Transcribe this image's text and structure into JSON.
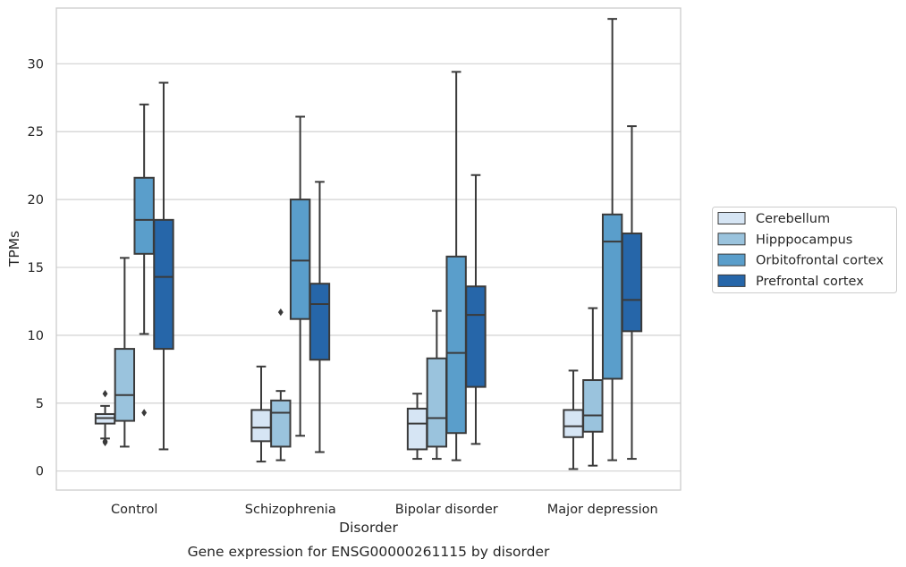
{
  "chart_data": {
    "type": "box",
    "title": "Gene expression for ENSG00000261115 by disorder",
    "xlabel": "Disorder",
    "ylabel": "TPMs",
    "ylim": [
      -1.4,
      34.1
    ],
    "yticks": [
      0,
      5,
      10,
      15,
      20,
      25,
      30
    ],
    "grid": "y",
    "legend_position": "right",
    "categories": [
      "Control",
      "Schizophrenia",
      "Bipolar disorder",
      "Major depression"
    ],
    "series": [
      {
        "name": "Cerebellum",
        "color": "#d6e5f4",
        "boxes": [
          {
            "whislo": 2.4,
            "q1": 3.5,
            "med": 3.9,
            "q3": 4.2,
            "whishi": 4.8,
            "fliers": [
              2.1,
              2.2,
              5.7
            ]
          },
          {
            "whislo": 0.7,
            "q1": 2.2,
            "med": 3.2,
            "q3": 4.5,
            "whishi": 7.7,
            "fliers": []
          },
          {
            "whislo": 0.9,
            "q1": 1.6,
            "med": 3.5,
            "q3": 4.6,
            "whishi": 5.7,
            "fliers": []
          },
          {
            "whislo": 0.15,
            "q1": 2.5,
            "med": 3.3,
            "q3": 4.5,
            "whishi": 7.4,
            "fliers": []
          }
        ]
      },
      {
        "name": "Hipppocampus",
        "color": "#9ac3dd",
        "boxes": [
          {
            "whislo": 1.8,
            "q1": 3.7,
            "med": 5.6,
            "q3": 9.0,
            "whishi": 15.7,
            "fliers": []
          },
          {
            "whislo": 0.8,
            "q1": 1.8,
            "med": 4.3,
            "q3": 5.2,
            "whishi": 5.9,
            "fliers": [
              11.7
            ]
          },
          {
            "whislo": 0.9,
            "q1": 1.8,
            "med": 3.9,
            "q3": 8.3,
            "whishi": 11.8,
            "fliers": []
          },
          {
            "whislo": 0.4,
            "q1": 2.9,
            "med": 4.1,
            "q3": 6.7,
            "whishi": 12.0,
            "fliers": []
          }
        ]
      },
      {
        "name": "Orbitofrontal cortex",
        "color": "#5a9ecb",
        "boxes": [
          {
            "whislo": 10.1,
            "q1": 16.0,
            "med": 18.5,
            "q3": 21.6,
            "whishi": 27.0,
            "fliers": [
              4.3
            ]
          },
          {
            "whislo": 2.6,
            "q1": 11.2,
            "med": 15.5,
            "q3": 20.0,
            "whishi": 26.1,
            "fliers": []
          },
          {
            "whislo": 0.8,
            "q1": 2.8,
            "med": 8.7,
            "q3": 15.8,
            "whishi": 29.4,
            "fliers": []
          },
          {
            "whislo": 0.8,
            "q1": 6.8,
            "med": 16.9,
            "q3": 18.9,
            "whishi": 33.3,
            "fliers": []
          }
        ]
      },
      {
        "name": "Prefrontal cortex",
        "color": "#2666a9",
        "boxes": [
          {
            "whislo": 1.6,
            "q1": 9.0,
            "med": 14.3,
            "q3": 18.5,
            "whishi": 28.6,
            "fliers": []
          },
          {
            "whislo": 1.4,
            "q1": 8.2,
            "med": 12.3,
            "q3": 13.8,
            "whishi": 21.3,
            "fliers": []
          },
          {
            "whislo": 2.0,
            "q1": 6.2,
            "med": 11.5,
            "q3": 13.6,
            "whishi": 21.8,
            "fliers": []
          },
          {
            "whislo": 0.9,
            "q1": 10.3,
            "med": 12.6,
            "q3": 17.5,
            "whishi": 25.4,
            "fliers": []
          }
        ]
      }
    ]
  }
}
